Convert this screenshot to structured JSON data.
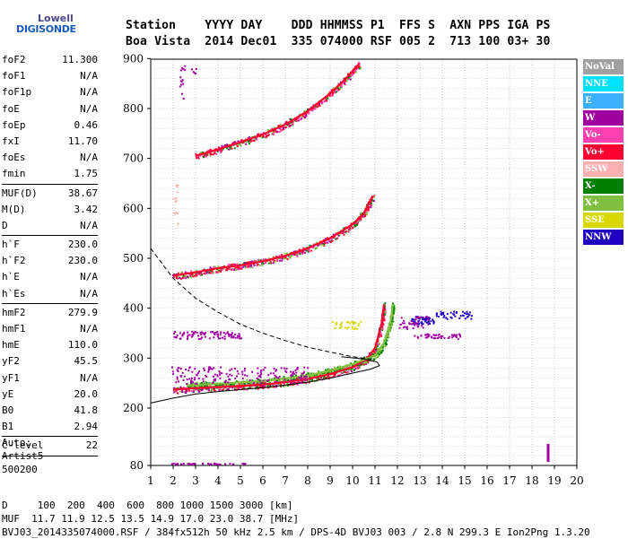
{
  "logo": {
    "line1": "Lowell",
    "line2": "DIGISONDE"
  },
  "header": {
    "labels": "Station    YYYY DAY    DDD HHMMSS P1  FFS S  AXN PPS IGA PS",
    "values": "Boa Vista  2014 Dec01  335 074000 RSF 005 2  713 100 03+ 30"
  },
  "params": [
    {
      "label": "foF2",
      "value": "11.300"
    },
    {
      "label": "foF1",
      "value": "N/A"
    },
    {
      "label": "foF1p",
      "value": "N/A"
    },
    {
      "label": "foE",
      "value": "N/A"
    },
    {
      "label": "foEp",
      "value": "0.46"
    },
    {
      "label": "fxI",
      "value": "11.70"
    },
    {
      "label": "foEs",
      "value": "N/A"
    },
    {
      "label": "fmin",
      "value": "1.75"
    },
    {
      "sep": true
    },
    {
      "label": "MUF(D)",
      "value": "38.67"
    },
    {
      "label": "M(D)",
      "value": "3.42"
    },
    {
      "label": "D",
      "value": "N/A"
    },
    {
      "sep": true
    },
    {
      "label": "h`F",
      "value": "230.0"
    },
    {
      "label": "h`F2",
      "value": "230.0"
    },
    {
      "label": "h`E",
      "value": "N/A"
    },
    {
      "label": "h`Es",
      "value": "N/A"
    },
    {
      "sep": true
    },
    {
      "label": "hmF2",
      "value": "279.9"
    },
    {
      "label": "hmF1",
      "value": "N/A"
    },
    {
      "label": "hmE",
      "value": "110.0"
    },
    {
      "label": "yF2",
      "value": "45.5"
    },
    {
      "label": "yF1",
      "value": "N/A"
    },
    {
      "label": "yE",
      "value": "20.0"
    },
    {
      "label": "B0",
      "value": "41.8"
    },
    {
      "label": "B1",
      "value": "2.94"
    },
    {
      "sep": true
    },
    {
      "label": "C-level",
      "value": "22"
    },
    {
      "sep": true
    }
  ],
  "auto": {
    "line1": "Auto:",
    "line2": "Artist5",
    "line3": "500200"
  },
  "footer": {
    "d_row": "D     100  200  400  600  800 1000 1500 3000 [km]",
    "muf_row": "MUF  11.7 11.9 12.5 13.5 14.9 17.0 23.0 38.7 [MHz]",
    "file_row": "BVJ03_2014335074000.RSF / 384fx512h 50 kHz 2.5 km / DPS-4D BVJ03 003 / 2.8 N 299.3 E Ion2Png 1.3.20"
  },
  "legend": [
    {
      "label": "NoVal",
      "color": "#a0a0a0"
    },
    {
      "label": "NNE",
      "color": "#00e0ff"
    },
    {
      "label": "E",
      "color": "#3ab0ff"
    },
    {
      "label": "W",
      "color": "#a000a0"
    },
    {
      "label": "Vo-",
      "color": "#ff40b0"
    },
    {
      "label": "Vo+",
      "color": "#ff0030"
    },
    {
      "label": "SSW",
      "color": "#ffb0b0"
    },
    {
      "label": "X-",
      "color": "#008000"
    },
    {
      "label": "X+",
      "color": "#80c040"
    },
    {
      "label": "SSE",
      "color": "#d8d800"
    },
    {
      "label": "NNW",
      "color": "#2000c0"
    }
  ],
  "chart_data": {
    "type": "scatter",
    "x_ticks": [
      "1",
      "2",
      "3",
      "4",
      "5",
      "6",
      "7",
      "8",
      "9",
      "10",
      "11",
      "12",
      "13",
      "14",
      "15",
      "16",
      "17",
      "18",
      "19",
      "20"
    ],
    "y_ticks": [
      "80",
      "200",
      "300",
      "400",
      "500",
      "600",
      "700",
      "800",
      "900"
    ],
    "xlim": [
      1,
      20
    ],
    "y_axis_scale": "ionogram virtual height, non-uniform below 200 km",
    "grid": true,
    "legend_position": "right",
    "series": [
      {
        "name": "Vo+",
        "points": [
          [
            2.0,
            237
          ],
          [
            3,
            240
          ],
          [
            4,
            242
          ],
          [
            5,
            244
          ],
          [
            6,
            247
          ],
          [
            7,
            252
          ],
          [
            8,
            258
          ],
          [
            9,
            268
          ],
          [
            10,
            282
          ],
          [
            10.6,
            297
          ],
          [
            11.0,
            320
          ],
          [
            11.3,
            370
          ],
          [
            11.4,
            408
          ]
        ]
      },
      {
        "name": "X+",
        "points": [
          [
            2.6,
            245
          ],
          [
            4,
            249
          ],
          [
            6,
            254
          ],
          [
            8,
            265
          ],
          [
            9,
            275
          ],
          [
            10,
            288
          ],
          [
            11,
            305
          ],
          [
            11.4,
            330
          ],
          [
            11.7,
            375
          ],
          [
            11.8,
            408
          ]
        ]
      },
      {
        "name": "Vo+",
        "points": [
          [
            2.0,
            465
          ],
          [
            3,
            472
          ],
          [
            4,
            480
          ],
          [
            5,
            486
          ],
          [
            6,
            494
          ],
          [
            7,
            505
          ],
          [
            8,
            520
          ],
          [
            9,
            540
          ],
          [
            10,
            568
          ],
          [
            10.5,
            590
          ],
          [
            10.9,
            625
          ]
        ]
      },
      {
        "name": "Vo+",
        "points": [
          [
            3.0,
            705
          ],
          [
            4,
            718
          ],
          [
            5,
            733
          ],
          [
            6,
            748
          ],
          [
            7,
            768
          ],
          [
            8,
            795
          ],
          [
            9,
            830
          ],
          [
            9.7,
            860
          ],
          [
            10.3,
            890
          ]
        ]
      }
    ],
    "profile_solid": [
      [
        1.0,
        210
      ],
      [
        2,
        220
      ],
      [
        3,
        228
      ],
      [
        4,
        233
      ],
      [
        5,
        237
      ],
      [
        6,
        241
      ],
      [
        7,
        246
      ],
      [
        8,
        252
      ],
      [
        9,
        260
      ],
      [
        10,
        270
      ],
      [
        10.8,
        278
      ],
      [
        11.2,
        285
      ],
      [
        11.1,
        292
      ],
      [
        10.5,
        298
      ],
      [
        9.5,
        303
      ]
    ],
    "profile_dashed": [
      [
        1.0,
        520
      ],
      [
        1.5,
        490
      ],
      [
        2,
        460
      ],
      [
        3,
        420
      ],
      [
        4,
        392
      ],
      [
        5,
        368
      ],
      [
        6,
        350
      ],
      [
        7,
        335
      ],
      [
        8,
        322
      ],
      [
        9,
        312
      ],
      [
        10,
        303
      ],
      [
        11.0,
        297
      ]
    ]
  }
}
